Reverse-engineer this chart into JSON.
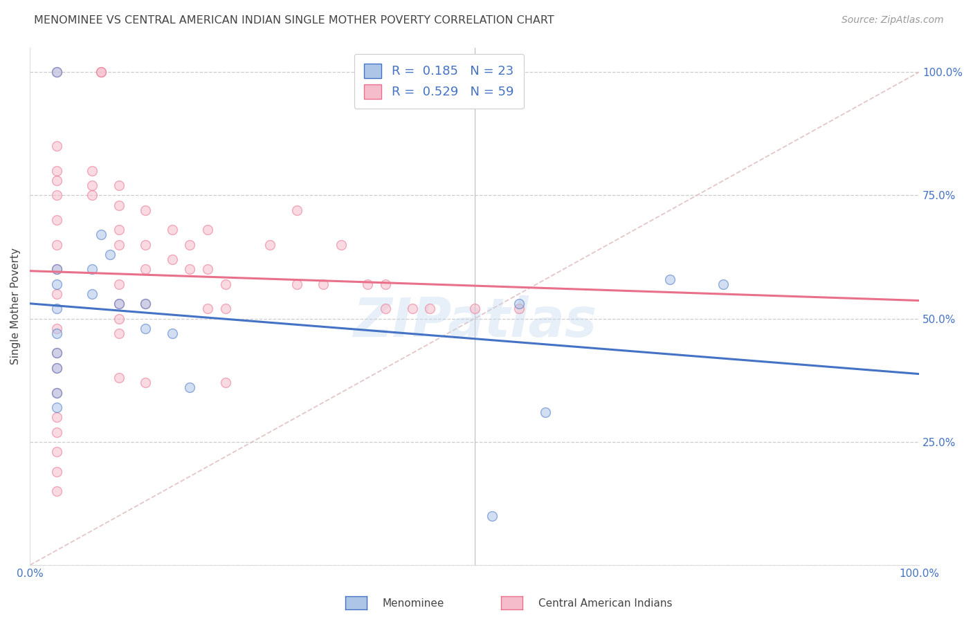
{
  "title": "MENOMINEE VS CENTRAL AMERICAN INDIAN SINGLE MOTHER POVERTY CORRELATION CHART",
  "source": "Source: ZipAtlas.com",
  "ylabel": "Single Mother Poverty",
  "legend_blue": "R =  0.185   N = 23",
  "legend_pink": "R =  0.529   N = 59",
  "legend_label_blue": "Menominee",
  "legend_label_pink": "Central American Indians",
  "watermark": "ZIPatlas",
  "blue_scatter_x": [
    0.03,
    0.08,
    0.09,
    0.07,
    0.07,
    0.1,
    0.13,
    0.13,
    0.03,
    0.03,
    0.03,
    0.03,
    0.03,
    0.03,
    0.03,
    0.03,
    0.16,
    0.18,
    0.55,
    0.58,
    0.72,
    0.78,
    0.52
  ],
  "blue_scatter_y": [
    1.0,
    0.67,
    0.63,
    0.6,
    0.55,
    0.53,
    0.53,
    0.48,
    0.6,
    0.57,
    0.52,
    0.47,
    0.43,
    0.4,
    0.35,
    0.32,
    0.47,
    0.36,
    0.53,
    0.31,
    0.58,
    0.57,
    0.1
  ],
  "pink_scatter_x": [
    0.03,
    0.08,
    0.08,
    0.03,
    0.03,
    0.03,
    0.03,
    0.03,
    0.03,
    0.03,
    0.03,
    0.03,
    0.03,
    0.03,
    0.03,
    0.03,
    0.03,
    0.03,
    0.03,
    0.03,
    0.07,
    0.07,
    0.07,
    0.1,
    0.1,
    0.1,
    0.1,
    0.1,
    0.1,
    0.1,
    0.1,
    0.1,
    0.13,
    0.13,
    0.13,
    0.13,
    0.13,
    0.16,
    0.16,
    0.18,
    0.18,
    0.2,
    0.2,
    0.2,
    0.22,
    0.22,
    0.22,
    0.27,
    0.3,
    0.3,
    0.33,
    0.35,
    0.38,
    0.4,
    0.4,
    0.43,
    0.45,
    0.5,
    0.55
  ],
  "pink_scatter_y": [
    1.0,
    1.0,
    1.0,
    0.85,
    0.8,
    0.78,
    0.75,
    0.7,
    0.65,
    0.6,
    0.55,
    0.48,
    0.43,
    0.4,
    0.35,
    0.3,
    0.27,
    0.23,
    0.19,
    0.15,
    0.8,
    0.77,
    0.75,
    0.77,
    0.73,
    0.68,
    0.65,
    0.57,
    0.53,
    0.5,
    0.47,
    0.38,
    0.72,
    0.65,
    0.6,
    0.53,
    0.37,
    0.68,
    0.62,
    0.65,
    0.6,
    0.68,
    0.6,
    0.52,
    0.57,
    0.52,
    0.37,
    0.65,
    0.72,
    0.57,
    0.57,
    0.65,
    0.57,
    0.57,
    0.52,
    0.52,
    0.52,
    0.52,
    0.52
  ],
  "blue_color": "#adc6e8",
  "pink_color": "#f5bccb",
  "blue_line_color": "#4472c4",
  "pink_line_color": "#e8708a",
  "dashed_line_color": "#ddb8b8",
  "background_color": "#ffffff",
  "grid_color": "#cccccc",
  "title_color": "#444444",
  "source_color": "#999999",
  "axis_label_color": "#4472c4",
  "legend_text_color": "#4472c4",
  "scatter_alpha": 0.55,
  "scatter_size": 100,
  "xlim": [
    0,
    1
  ],
  "ylim": [
    0,
    1.05
  ]
}
